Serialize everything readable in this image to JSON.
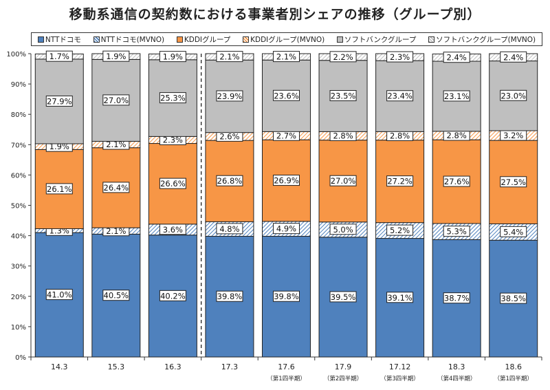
{
  "chart_data": {
    "type": "bar",
    "stacked": true,
    "title": "移動系通信の契約数における事業者別シェアの推移（グループ別）",
    "categories": [
      "14.3",
      "15.3",
      "16.3",
      "17.3",
      "17.6",
      "17.9",
      "17.12",
      "18.3",
      "18.6"
    ],
    "sublabels": [
      "",
      "",
      "",
      "",
      "（第1四半期）",
      "（第2四半期）",
      "（第3四半期）",
      "（第4四半期）",
      "（第1四半期）"
    ],
    "ylim": [
      0,
      100
    ],
    "yticks": [
      "0%",
      "10%",
      "20%",
      "30%",
      "40%",
      "50%",
      "60%",
      "70%",
      "80%",
      "90%",
      "100%"
    ],
    "legend_position": "top",
    "divider_after": "16.3",
    "series": [
      {
        "name": "NTTドコモ",
        "color": "#4f81bd",
        "pattern": "solid",
        "values": [
          41.0,
          40.5,
          40.2,
          39.8,
          39.8,
          39.5,
          39.1,
          38.7,
          38.5
        ]
      },
      {
        "name": "NTTドコモ(MVNO)",
        "color": "#4f81bd",
        "pattern": "hatched",
        "values": [
          1.3,
          2.1,
          3.6,
          4.8,
          4.9,
          5.0,
          5.2,
          5.3,
          5.4
        ]
      },
      {
        "name": "KDDIグループ",
        "color": "#f79646",
        "pattern": "solid",
        "values": [
          26.1,
          26.4,
          26.6,
          26.8,
          26.9,
          27.0,
          27.2,
          27.6,
          27.5
        ]
      },
      {
        "name": "KDDIグループ(MVNO)",
        "color": "#f79646",
        "pattern": "hatched",
        "values": [
          1.9,
          2.1,
          2.3,
          2.6,
          2.7,
          2.8,
          2.8,
          2.8,
          3.2
        ]
      },
      {
        "name": "ソフトバンクグループ",
        "color": "#bfbfbf",
        "pattern": "solid",
        "values": [
          27.9,
          27.0,
          25.3,
          23.9,
          23.6,
          23.5,
          23.4,
          23.1,
          23.0
        ]
      },
      {
        "name": "ソフトバンクグループ(MVNO)",
        "color": "#bfbfbf",
        "pattern": "hatched",
        "values": [
          1.7,
          1.9,
          1.9,
          2.1,
          2.1,
          2.2,
          2.3,
          2.4,
          2.4
        ]
      }
    ]
  }
}
